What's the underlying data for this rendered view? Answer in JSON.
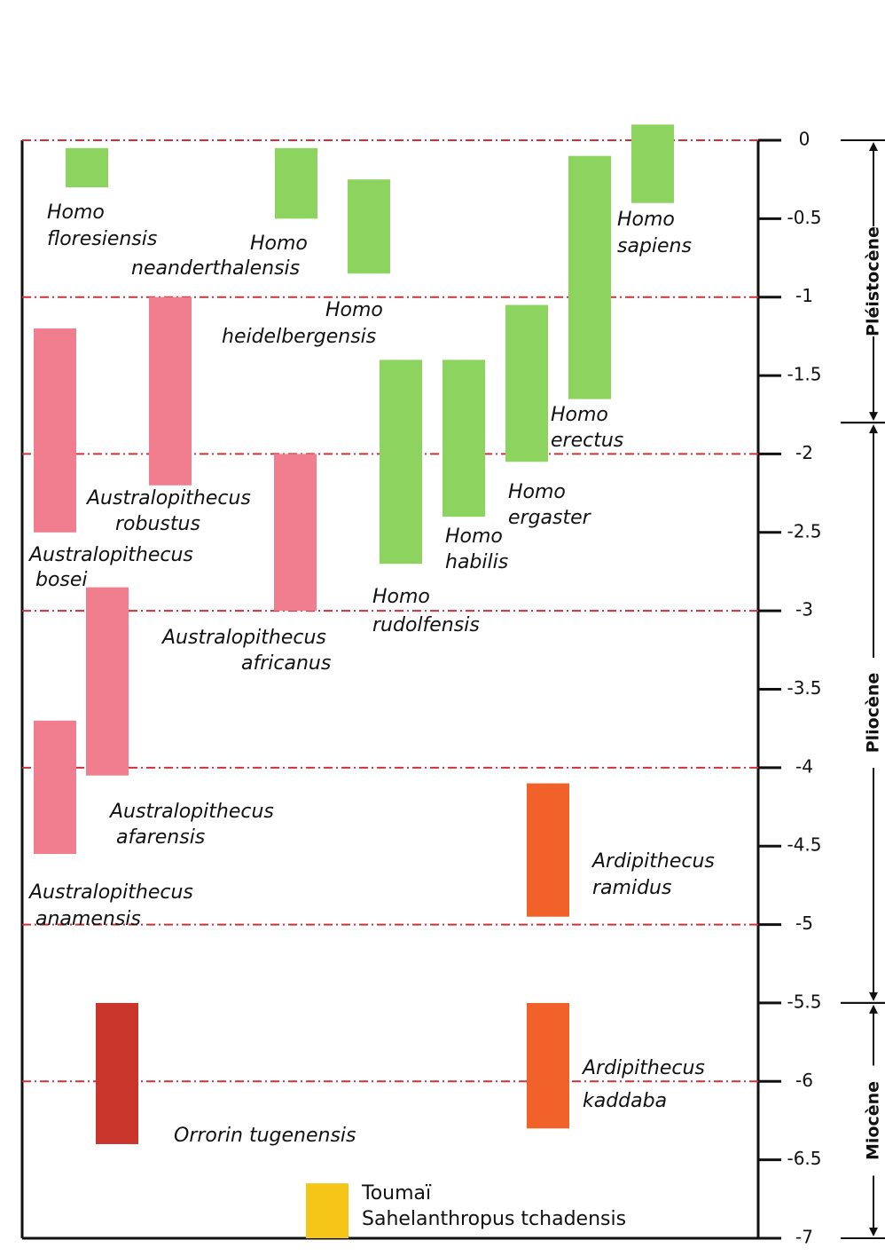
{
  "chart_data": {
    "type": "range_bar",
    "ylim": [
      -7,
      0
    ],
    "yticks": [
      0,
      -0.5,
      -1,
      -1.5,
      -2,
      -2.5,
      -3,
      -3.5,
      -4,
      -4.5,
      -5,
      -5.5,
      -6,
      -6.5,
      -7
    ],
    "grid": true,
    "bars": [
      {
        "label": [
          "Homo",
          "floresiensis"
        ],
        "start": -0.05,
        "end": -0.3,
        "color": "#8dd35f"
      },
      {
        "label": [
          "Homo",
          "neanderthalensis"
        ],
        "start": -0.05,
        "end": -0.5,
        "color": "#8dd35f"
      },
      {
        "label": [
          "Homo",
          "heidelbergensis"
        ],
        "start": -0.25,
        "end": -0.85,
        "color": "#8dd35f"
      },
      {
        "label": [
          "Homo",
          "sapiens"
        ],
        "start": 0.1,
        "end": -0.4,
        "color": "#8dd35f"
      },
      {
        "label": [
          "Homo",
          "erectus"
        ],
        "start": -0.1,
        "end": -1.65,
        "color": "#8dd35f"
      },
      {
        "label": [
          "Homo",
          "ergaster"
        ],
        "start": -1.05,
        "end": -2.05,
        "color": "#8dd35f"
      },
      {
        "label": [
          "Homo",
          "habilis"
        ],
        "start": -1.4,
        "end": -2.4,
        "color": "#8dd35f"
      },
      {
        "label": [
          "Homo",
          "rudolfensis"
        ],
        "start": -1.4,
        "end": -2.7,
        "color": "#8dd35f"
      },
      {
        "label": [
          "Australopithecus",
          "robustus"
        ],
        "start": -1,
        "end": -2.2,
        "color": "#f07e8f"
      },
      {
        "label": [
          "Australopithecus",
          "bosei"
        ],
        "start": -1.2,
        "end": -2.5,
        "color": "#f07e8f"
      },
      {
        "label": [
          "Australopithecus",
          "africanus"
        ],
        "start": -2,
        "end": -3,
        "color": "#f07e8f"
      },
      {
        "label": [
          "Australopithecus",
          "afarensis"
        ],
        "start": -2.85,
        "end": -4.05,
        "color": "#f07e8f"
      },
      {
        "label": [
          "Australopithecus",
          "anamensis"
        ],
        "start": -3.7,
        "end": -4.55,
        "color": "#f07e8f"
      },
      {
        "label": [
          "Ardipithecus",
          "ramidus"
        ],
        "start": -4.1,
        "end": -4.95,
        "color": "#f0622a"
      },
      {
        "label": [
          "Ardipithecus",
          "kaddaba"
        ],
        "start": -5.5,
        "end": -6.3,
        "color": "#f0622a"
      },
      {
        "label": [
          "Orrorin tugenensis"
        ],
        "start": -5.5,
        "end": -6.4,
        "color": "#c9342b"
      },
      {
        "label": [
          "Toumaï",
          "Sahelanthropus tchadensis"
        ],
        "start": -6.65,
        "end": -7,
        "color": "#f5c518"
      }
    ],
    "epochs": [
      {
        "name": "Pléistocène",
        "start": 0,
        "end": -1.8
      },
      {
        "name": "Pliocène",
        "start": -1.8,
        "end": -5.5
      },
      {
        "name": "Miocène",
        "start": -5.5,
        "end": -7
      }
    ]
  }
}
